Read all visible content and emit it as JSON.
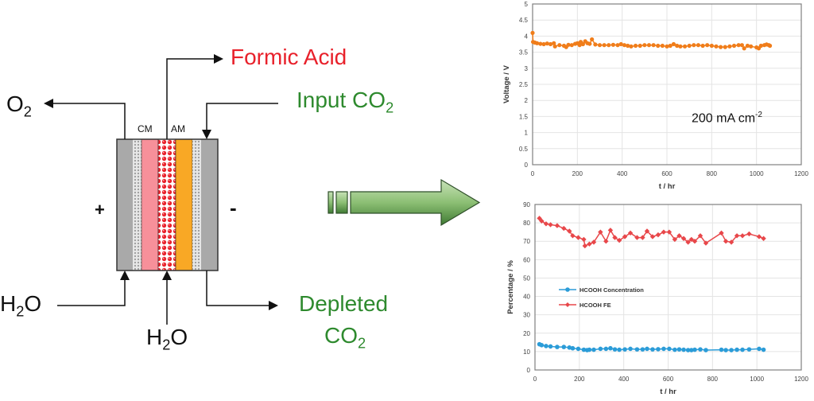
{
  "diagram": {
    "labels": {
      "formic_acid": "Formic Acid",
      "input_co2": "Input CO",
      "input_co2_sub": "2",
      "o2": "O",
      "o2_sub": "2",
      "cm": "CM",
      "am": "AM",
      "plus": "+",
      "minus": "-",
      "h2o_left": "H",
      "h2o_left_sub": "2",
      "h2o_left_tail": "O",
      "h2o_center": "H",
      "h2o_center_sub": "2",
      "h2o_center_tail": "O",
      "depleted": "Depleted",
      "depleted_co2": "CO",
      "depleted_co2_sub": "2"
    },
    "colors": {
      "electrode": "#a9a9a9",
      "cation_membrane": "#f7909a",
      "center_layer": "#e8212b",
      "anion_membrane": "#f9a825",
      "arrow_green": "#5e9a4e",
      "formic_text": "#e8212b",
      "co2_text": "#2e8a2e"
    }
  },
  "chart_data": [
    {
      "type": "line",
      "title": "",
      "annotation": "200 mA cm",
      "annotation_sup": "-2",
      "xlabel": "t / hr",
      "ylabel": "Voltage / V",
      "xlim": [
        0,
        1200
      ],
      "ylim": [
        0,
        5
      ],
      "xticks": [
        "0",
        "200",
        "400",
        "600",
        "800",
        "1000",
        "1200"
      ],
      "yticks": [
        "0",
        "0.5",
        "1",
        "1.5",
        "2",
        "2.5",
        "3",
        "3.5",
        "4",
        "4.5",
        "5"
      ],
      "grid": true,
      "series": [
        {
          "name": "Voltage",
          "color": "#f07d1a",
          "x": [
            0,
            2,
            10,
            20,
            35,
            50,
            65,
            80,
            95,
            100,
            120,
            140,
            150,
            160,
            175,
            190,
            200,
            210,
            215,
            225,
            235,
            245,
            255,
            265,
            280,
            300,
            320,
            340,
            360,
            380,
            395,
            410,
            425,
            440,
            460,
            480,
            500,
            520,
            540,
            560,
            580,
            600,
            615,
            630,
            645,
            660,
            680,
            700,
            720,
            740,
            760,
            780,
            800,
            820,
            840,
            860,
            880,
            900,
            920,
            935,
            945,
            960,
            975,
            1000,
            1010,
            1020,
            1035,
            1045,
            1055,
            1060
          ],
          "y": [
            4.1,
            3.82,
            3.8,
            3.78,
            3.76,
            3.75,
            3.77,
            3.75,
            3.78,
            3.68,
            3.72,
            3.7,
            3.66,
            3.73,
            3.72,
            3.76,
            3.78,
            3.72,
            3.82,
            3.75,
            3.84,
            3.78,
            3.76,
            3.9,
            3.74,
            3.72,
            3.72,
            3.72,
            3.73,
            3.72,
            3.75,
            3.72,
            3.7,
            3.68,
            3.7,
            3.7,
            3.72,
            3.72,
            3.72,
            3.7,
            3.7,
            3.68,
            3.7,
            3.75,
            3.7,
            3.68,
            3.68,
            3.7,
            3.72,
            3.72,
            3.7,
            3.72,
            3.7,
            3.68,
            3.66,
            3.66,
            3.68,
            3.7,
            3.72,
            3.72,
            3.62,
            3.7,
            3.68,
            3.65,
            3.62,
            3.7,
            3.72,
            3.74,
            3.72,
            3.7
          ]
        }
      ]
    },
    {
      "type": "line",
      "title": "",
      "xlabel": "t / hr",
      "ylabel": "Percentage / %",
      "xlim": [
        0,
        1200
      ],
      "ylim": [
        0,
        90
      ],
      "xticks": [
        "0",
        "200",
        "400",
        "600",
        "800",
        "1000",
        "1200"
      ],
      "yticks": [
        "0",
        "10",
        "20",
        "30",
        "40",
        "50",
        "60",
        "70",
        "80",
        "90"
      ],
      "grid": true,
      "legend_position": "center-left",
      "series": [
        {
          "name": "HCOOH Concentration",
          "color": "#2b9cd8",
          "marker": "circle",
          "x": [
            20,
            30,
            50,
            70,
            100,
            130,
            155,
            170,
            195,
            220,
            235,
            245,
            265,
            295,
            320,
            340,
            360,
            380,
            405,
            430,
            460,
            485,
            505,
            530,
            555,
            580,
            605,
            630,
            650,
            670,
            690,
            705,
            720,
            745,
            770,
            840,
            860,
            885,
            910,
            935,
            965,
            1010,
            1030
          ],
          "y": [
            14,
            13.5,
            13,
            12.8,
            12.5,
            12.5,
            12.2,
            11.8,
            11.5,
            11,
            10.8,
            11,
            11,
            11.5,
            11.5,
            11.8,
            11.2,
            11,
            11.2,
            11.5,
            11.2,
            11.2,
            11.5,
            11.2,
            11.3,
            11.5,
            11.5,
            11,
            11.2,
            11,
            10.8,
            10.8,
            11,
            11.2,
            10.8,
            11,
            10.8,
            10.8,
            11,
            11,
            11.2,
            11.5,
            11
          ]
        },
        {
          "name": "HCOOH FE",
          "color": "#e8474a",
          "marker": "diamond",
          "x": [
            20,
            30,
            50,
            70,
            100,
            130,
            155,
            170,
            195,
            220,
            225,
            245,
            265,
            295,
            320,
            340,
            360,
            380,
            405,
            430,
            460,
            485,
            505,
            530,
            555,
            580,
            605,
            630,
            650,
            670,
            690,
            705,
            720,
            745,
            770,
            840,
            860,
            885,
            910,
            935,
            965,
            1010,
            1030
          ],
          "y": [
            82.5,
            81,
            79.5,
            79,
            78.5,
            77,
            75.5,
            73,
            72,
            71,
            67.5,
            68.5,
            69.5,
            75,
            70,
            76,
            72,
            70.5,
            72.5,
            74.5,
            72,
            72,
            75.5,
            72.5,
            73.5,
            75,
            75,
            71,
            73,
            71.5,
            69.5,
            71,
            70,
            73,
            69,
            74.5,
            70,
            69.5,
            73,
            73,
            74,
            72.5,
            71.5
          ]
        }
      ]
    }
  ]
}
